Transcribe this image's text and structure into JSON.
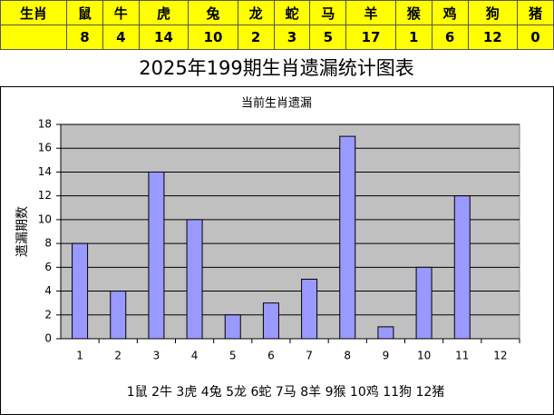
{
  "table": {
    "rows": [
      [
        "生肖",
        "鼠",
        "牛",
        "虎",
        "兔",
        "龙",
        "蛇",
        "马",
        "羊",
        "猴",
        "鸡",
        "狗",
        "猪"
      ],
      [
        null,
        8,
        4,
        14,
        10,
        2,
        3,
        5,
        17,
        1,
        6,
        12,
        0
      ]
    ]
  },
  "chart_data": {
    "type": "bar",
    "title": "2025年199期生肖遗漏统计图表",
    "subtitle": "当前生肖遗漏",
    "y_label": "遗漏期数",
    "x_label": "1鼠 2牛 3虎 4兔 5龙 6蛇 7马 8羊 9猴 10鸡 11狗 12猪",
    "categories": [
      "1",
      "2",
      "3",
      "4",
      "5",
      "6",
      "7",
      "8",
      "9",
      "10",
      "11",
      "12"
    ],
    "values": [
      8,
      4,
      14,
      10,
      2,
      3,
      5,
      17,
      1,
      6,
      12,
      0
    ],
    "color": "#9999ff",
    "plot_color": "#c0c0c0",
    "ylim": [
      0,
      18
    ],
    "yticks": [
      0,
      2,
      4,
      6,
      8,
      10,
      12,
      14,
      16,
      18
    ],
    "grid": true
  }
}
